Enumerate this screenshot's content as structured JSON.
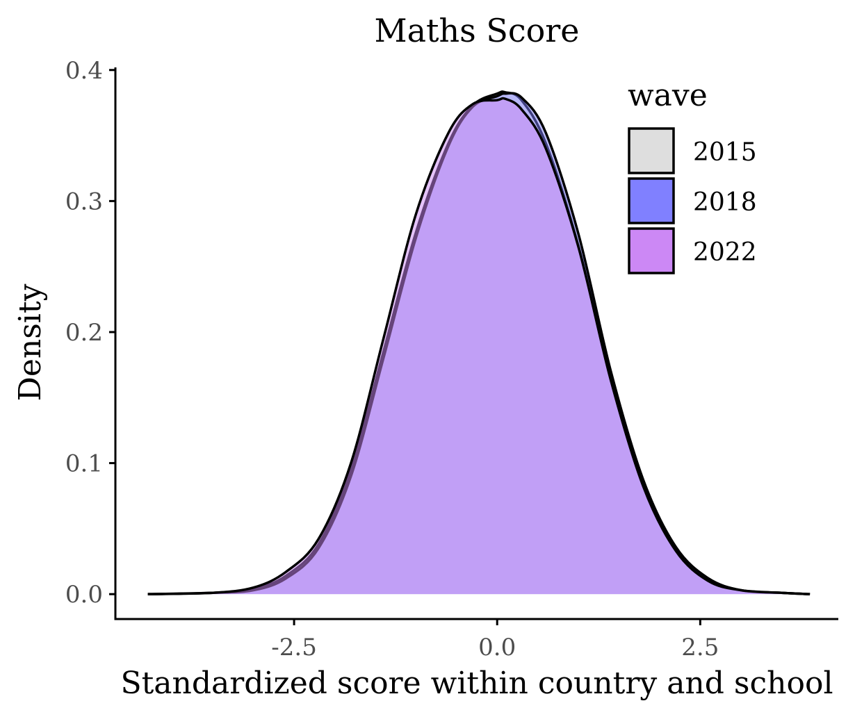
{
  "chart_data": {
    "type": "area",
    "title": "Maths Score",
    "xlabel": "Standardized score within country and school",
    "ylabel": "Density",
    "xlim": [
      -4.7,
      4.2
    ],
    "ylim": [
      -0.019,
      0.402
    ],
    "x_ticks": [
      -2.5,
      0.0,
      2.5
    ],
    "x_tick_labels": [
      "-2.5",
      "0.0",
      "2.5"
    ],
    "y_ticks": [
      0.0,
      0.1,
      0.2,
      0.3,
      0.4
    ],
    "y_tick_labels": [
      "0.0",
      "0.1",
      "0.2",
      "0.3",
      "0.4"
    ],
    "grid": false,
    "legend": {
      "title": "wave",
      "position": "top-right"
    },
    "series": [
      {
        "name": "2015",
        "color": "#dedede",
        "x": [
          -4.3,
          -3.5,
          -3.0,
          -2.6,
          -2.2,
          -1.8,
          -1.4,
          -1.0,
          -0.6,
          -0.3,
          0.0,
          0.1,
          0.3,
          0.6,
          1.0,
          1.4,
          1.8,
          2.2,
          2.6,
          3.0,
          3.5,
          3.85
        ],
        "y": [
          0.0,
          0.001,
          0.004,
          0.014,
          0.038,
          0.095,
          0.185,
          0.276,
          0.344,
          0.373,
          0.382,
          0.383,
          0.377,
          0.344,
          0.266,
          0.165,
          0.085,
          0.035,
          0.012,
          0.003,
          0.001,
          0.0
        ]
      },
      {
        "name": "2018",
        "color": "#8080ff",
        "x": [
          -4.3,
          -3.5,
          -3.0,
          -2.6,
          -2.2,
          -1.8,
          -1.4,
          -1.0,
          -0.6,
          -0.3,
          0.0,
          0.1,
          0.3,
          0.6,
          1.0,
          1.4,
          1.8,
          2.2,
          2.6,
          3.0,
          3.5,
          3.85
        ],
        "y": [
          0.0,
          0.001,
          0.003,
          0.012,
          0.035,
          0.09,
          0.18,
          0.272,
          0.342,
          0.372,
          0.38,
          0.382,
          0.379,
          0.352,
          0.275,
          0.17,
          0.087,
          0.036,
          0.012,
          0.003,
          0.001,
          0.0
        ]
      },
      {
        "name": "2022",
        "color": "#cc88f5",
        "x": [
          -4.3,
          -3.5,
          -3.0,
          -2.6,
          -2.2,
          -1.8,
          -1.4,
          -1.0,
          -0.6,
          -0.3,
          0.0,
          0.1,
          0.3,
          0.6,
          1.0,
          1.4,
          1.8,
          2.2,
          2.6,
          3.0,
          3.5,
          3.85
        ],
        "y": [
          0.0,
          0.001,
          0.005,
          0.017,
          0.042,
          0.1,
          0.195,
          0.29,
          0.352,
          0.374,
          0.377,
          0.378,
          0.37,
          0.34,
          0.265,
          0.163,
          0.082,
          0.033,
          0.01,
          0.003,
          0.001,
          0.0
        ]
      }
    ]
  }
}
